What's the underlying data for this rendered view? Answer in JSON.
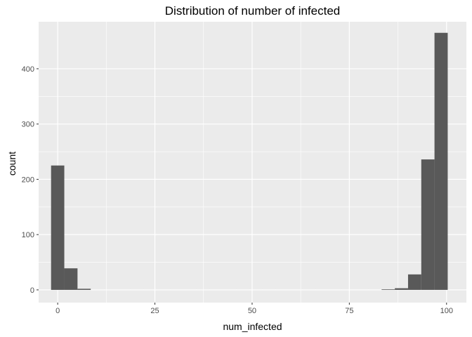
{
  "chart_data": {
    "type": "bar",
    "title": "Distribution of number of infected",
    "xlabel": "num_infected",
    "ylabel": "count",
    "xlim": [
      -4.9,
      105.1
    ],
    "ylim": [
      -23,
      485
    ],
    "x_ticks": [
      0,
      25,
      50,
      75,
      100
    ],
    "y_ticks": [
      0,
      100,
      200,
      300,
      400
    ],
    "grid": true,
    "background_color": "#EBEBEB",
    "bar_color": "#595959",
    "bins": [
      {
        "x0": -1.7,
        "x1": 1.7,
        "count": 225
      },
      {
        "x0": 1.7,
        "x1": 5.1,
        "count": 39
      },
      {
        "x0": 5.1,
        "x1": 8.5,
        "count": 2
      },
      {
        "x0": 8.5,
        "x1": 11.9,
        "count": 0
      },
      {
        "x0": 11.9,
        "x1": 15.3,
        "count": 0
      },
      {
        "x0": 15.3,
        "x1": 18.7,
        "count": 0
      },
      {
        "x0": 18.7,
        "x1": 22.1,
        "count": 0
      },
      {
        "x0": 22.1,
        "x1": 25.5,
        "count": 0
      },
      {
        "x0": 25.5,
        "x1": 28.9,
        "count": 0
      },
      {
        "x0": 28.9,
        "x1": 32.3,
        "count": 0
      },
      {
        "x0": 32.3,
        "x1": 35.7,
        "count": 0
      },
      {
        "x0": 35.7,
        "x1": 39.1,
        "count": 0
      },
      {
        "x0": 39.1,
        "x1": 42.5,
        "count": 0
      },
      {
        "x0": 42.5,
        "x1": 45.9,
        "count": 0
      },
      {
        "x0": 45.9,
        "x1": 49.3,
        "count": 0
      },
      {
        "x0": 49.3,
        "x1": 52.7,
        "count": 0
      },
      {
        "x0": 52.7,
        "x1": 56.1,
        "count": 0
      },
      {
        "x0": 56.1,
        "x1": 59.5,
        "count": 0
      },
      {
        "x0": 59.5,
        "x1": 62.9,
        "count": 0
      },
      {
        "x0": 62.9,
        "x1": 66.3,
        "count": 0
      },
      {
        "x0": 66.3,
        "x1": 69.7,
        "count": 0
      },
      {
        "x0": 69.7,
        "x1": 73.1,
        "count": 0
      },
      {
        "x0": 73.1,
        "x1": 76.5,
        "count": 0
      },
      {
        "x0": 76.5,
        "x1": 79.9,
        "count": 0
      },
      {
        "x0": 79.9,
        "x1": 83.3,
        "count": 0
      },
      {
        "x0": 83.3,
        "x1": 86.7,
        "count": 1
      },
      {
        "x0": 86.7,
        "x1": 90.1,
        "count": 3
      },
      {
        "x0": 90.1,
        "x1": 93.5,
        "count": 28
      },
      {
        "x0": 93.5,
        "x1": 96.9,
        "count": 236
      },
      {
        "x0": 96.9,
        "x1": 100.3,
        "count": 465
      }
    ]
  }
}
